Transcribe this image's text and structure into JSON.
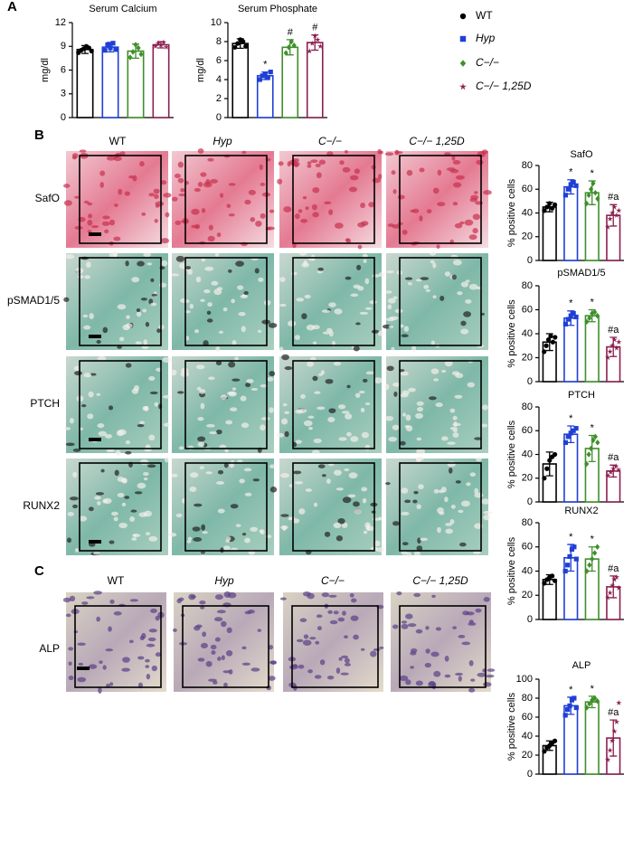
{
  "panels": [
    "A",
    "B",
    "C"
  ],
  "groups": [
    {
      "name": "WT",
      "color": "#000000",
      "marker": "circle"
    },
    {
      "name": "Hyp",
      "color": "#1f3fd6",
      "marker": "square"
    },
    {
      "name": "C−/−",
      "color": "#3f8f2a",
      "marker": "diamond"
    },
    {
      "name": "C−/− 1,25D",
      "color": "#8c1f4f",
      "marker": "star"
    }
  ],
  "image_columns_b": [
    "WT",
    "Hyp",
    "C−/−",
    "C−/− 1,25D"
  ],
  "image_rows_b": [
    "SafO",
    "pSMAD1/5",
    "PTCH",
    "RUNX2"
  ],
  "image_columns_c": [
    "WT",
    "Hyp",
    "C−/−",
    "C−/− 1,25D"
  ],
  "image_row_c": "ALP",
  "chart_data": [
    {
      "type": "bar",
      "title": "Serum Calcium",
      "ylabel": "mg/dl",
      "ylim": [
        0,
        12
      ],
      "yticks": [
        0,
        3,
        6,
        9,
        12
      ],
      "values": [
        8.6,
        8.9,
        8.4,
        9.2
      ],
      "errors": [
        0.5,
        0.6,
        0.9,
        0.4
      ],
      "points": [
        [
          8.2,
          8.5,
          8.7,
          9.0,
          8.8,
          8.4
        ],
        [
          8.5,
          9.2,
          8.8,
          9.4,
          8.6
        ],
        [
          7.6,
          8.3,
          9.2,
          8.8,
          8.0
        ],
        [
          9.0,
          9.4,
          9.2,
          9.5,
          8.9
        ]
      ],
      "annotations": [
        null,
        null,
        null,
        null
      ]
    },
    {
      "type": "bar",
      "title": "Serum Phosphate",
      "ylabel": "mg/dl",
      "ylim": [
        0,
        10
      ],
      "yticks": [
        0,
        2,
        4,
        6,
        8,
        10
      ],
      "values": [
        7.8,
        4.4,
        7.4,
        7.9
      ],
      "errors": [
        0.5,
        0.4,
        0.8,
        0.8
      ],
      "points": [
        [
          7.4,
          7.8,
          8.2,
          8.0,
          7.5
        ],
        [
          4.0,
          4.4,
          4.6,
          4.2,
          4.8
        ],
        [
          6.8,
          7.4,
          8.0,
          7.6
        ],
        [
          7.0,
          7.8,
          8.6,
          8.2,
          7.5
        ]
      ],
      "annotations": [
        null,
        "*",
        "#",
        "#"
      ]
    },
    {
      "type": "bar",
      "title": "SafO",
      "ylabel": "% positive cells",
      "ylim": [
        0,
        80
      ],
      "yticks": [
        0,
        20,
        40,
        60,
        80
      ],
      "values": [
        45,
        62,
        57,
        38
      ],
      "errors": [
        4,
        6,
        10,
        9
      ],
      "points": [
        [
          42,
          45,
          48,
          44,
          47
        ],
        [
          55,
          60,
          64,
          66,
          63
        ],
        [
          48,
          55,
          60,
          65,
          57,
          52
        ],
        [
          28,
          35,
          40,
          45,
          38,
          42
        ]
      ],
      "annotations": [
        null,
        "*",
        "*",
        "#a"
      ]
    },
    {
      "type": "bar",
      "title": "pSMAD1/5",
      "ylabel": "% positive cells",
      "ylim": [
        0,
        80
      ],
      "yticks": [
        0,
        20,
        40,
        60,
        80
      ],
      "values": [
        33,
        53,
        55,
        29
      ],
      "errors": [
        7,
        6,
        5,
        8
      ],
      "points": [
        [
          25,
          30,
          35,
          38,
          33,
          37
        ],
        [
          48,
          52,
          55,
          57,
          54
        ],
        [
          50,
          53,
          57,
          58,
          55
        ],
        [
          20,
          25,
          30,
          35,
          28,
          33
        ]
      ],
      "annotations": [
        null,
        "*",
        "*",
        "#a"
      ]
    },
    {
      "type": "bar",
      "title": "PTCH",
      "ylabel": "% positive cells",
      "ylim": [
        0,
        80
      ],
      "yticks": [
        0,
        20,
        40,
        60,
        80
      ],
      "values": [
        32,
        57,
        45,
        26
      ],
      "errors": [
        10,
        7,
        11,
        5
      ],
      "points": [
        [
          20,
          28,
          35,
          38,
          40
        ],
        [
          50,
          55,
          58,
          60,
          62
        ],
        [
          32,
          40,
          45,
          52,
          55,
          50
        ],
        [
          22,
          25,
          28,
          30,
          27
        ]
      ],
      "annotations": [
        null,
        "*",
        "*",
        "#a"
      ]
    },
    {
      "type": "bar",
      "title": "RUNX2",
      "ylabel": "% positive cells",
      "ylim": [
        0,
        80
      ],
      "yticks": [
        0,
        20,
        40,
        60,
        80
      ],
      "values": [
        33,
        51,
        50,
        27
      ],
      "errors": [
        4,
        11,
        10,
        9
      ],
      "points": [
        [
          30,
          33,
          35,
          36,
          32
        ],
        [
          40,
          45,
          52,
          58,
          60,
          50
        ],
        [
          40,
          45,
          50,
          55,
          60
        ],
        [
          18,
          22,
          28,
          33,
          35,
          26
        ]
      ],
      "annotations": [
        null,
        "*",
        "*",
        "#a"
      ]
    },
    {
      "type": "bar",
      "title": "ALP",
      "ylabel": "% positive cells",
      "ylim": [
        0,
        100
      ],
      "yticks": [
        0,
        20,
        40,
        60,
        80,
        100
      ],
      "values": [
        30,
        72,
        76,
        38
      ],
      "errors": [
        5,
        9,
        6,
        19
      ],
      "points": [
        [
          24,
          28,
          30,
          33,
          35
        ],
        [
          62,
          68,
          72,
          78,
          80,
          70
        ],
        [
          70,
          74,
          78,
          80,
          77
        ],
        [
          15,
          25,
          35,
          45,
          55,
          75
        ]
      ],
      "annotations": [
        null,
        "*",
        "*",
        "#a"
      ]
    }
  ]
}
